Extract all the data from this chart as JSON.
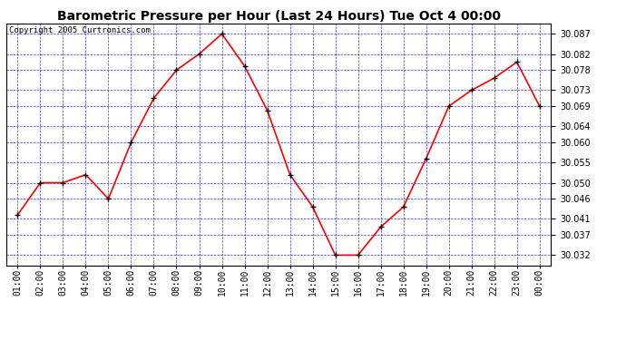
{
  "title": "Barometric Pressure per Hour (Last 24 Hours) Tue Oct 4 00:00",
  "copyright": "Copyright 2005 Curtronics.com",
  "hours": [
    "01:00",
    "02:00",
    "03:00",
    "04:00",
    "05:00",
    "06:00",
    "07:00",
    "08:00",
    "09:00",
    "10:00",
    "11:00",
    "12:00",
    "13:00",
    "14:00",
    "15:00",
    "16:00",
    "17:00",
    "18:00",
    "19:00",
    "20:00",
    "21:00",
    "22:00",
    "23:00",
    "00:00"
  ],
  "values": [
    30.042,
    30.05,
    30.05,
    30.052,
    30.046,
    30.06,
    30.071,
    30.078,
    30.082,
    30.087,
    30.079,
    30.068,
    30.052,
    30.044,
    30.032,
    30.032,
    30.039,
    30.044,
    30.056,
    30.069,
    30.073,
    30.076,
    30.08,
    30.069
  ],
  "ylim_min": 30.0295,
  "ylim_max": 30.0895,
  "yticks": [
    30.032,
    30.037,
    30.041,
    30.046,
    30.05,
    30.055,
    30.06,
    30.064,
    30.069,
    30.073,
    30.078,
    30.082,
    30.087
  ],
  "line_color": "red",
  "marker_color": "black",
  "bg_color": "#ffffff",
  "plot_bg_color": "#ffffff",
  "grid_color": "blue",
  "title_fontsize": 10,
  "tick_fontsize": 7,
  "copyright_fontsize": 6.5
}
